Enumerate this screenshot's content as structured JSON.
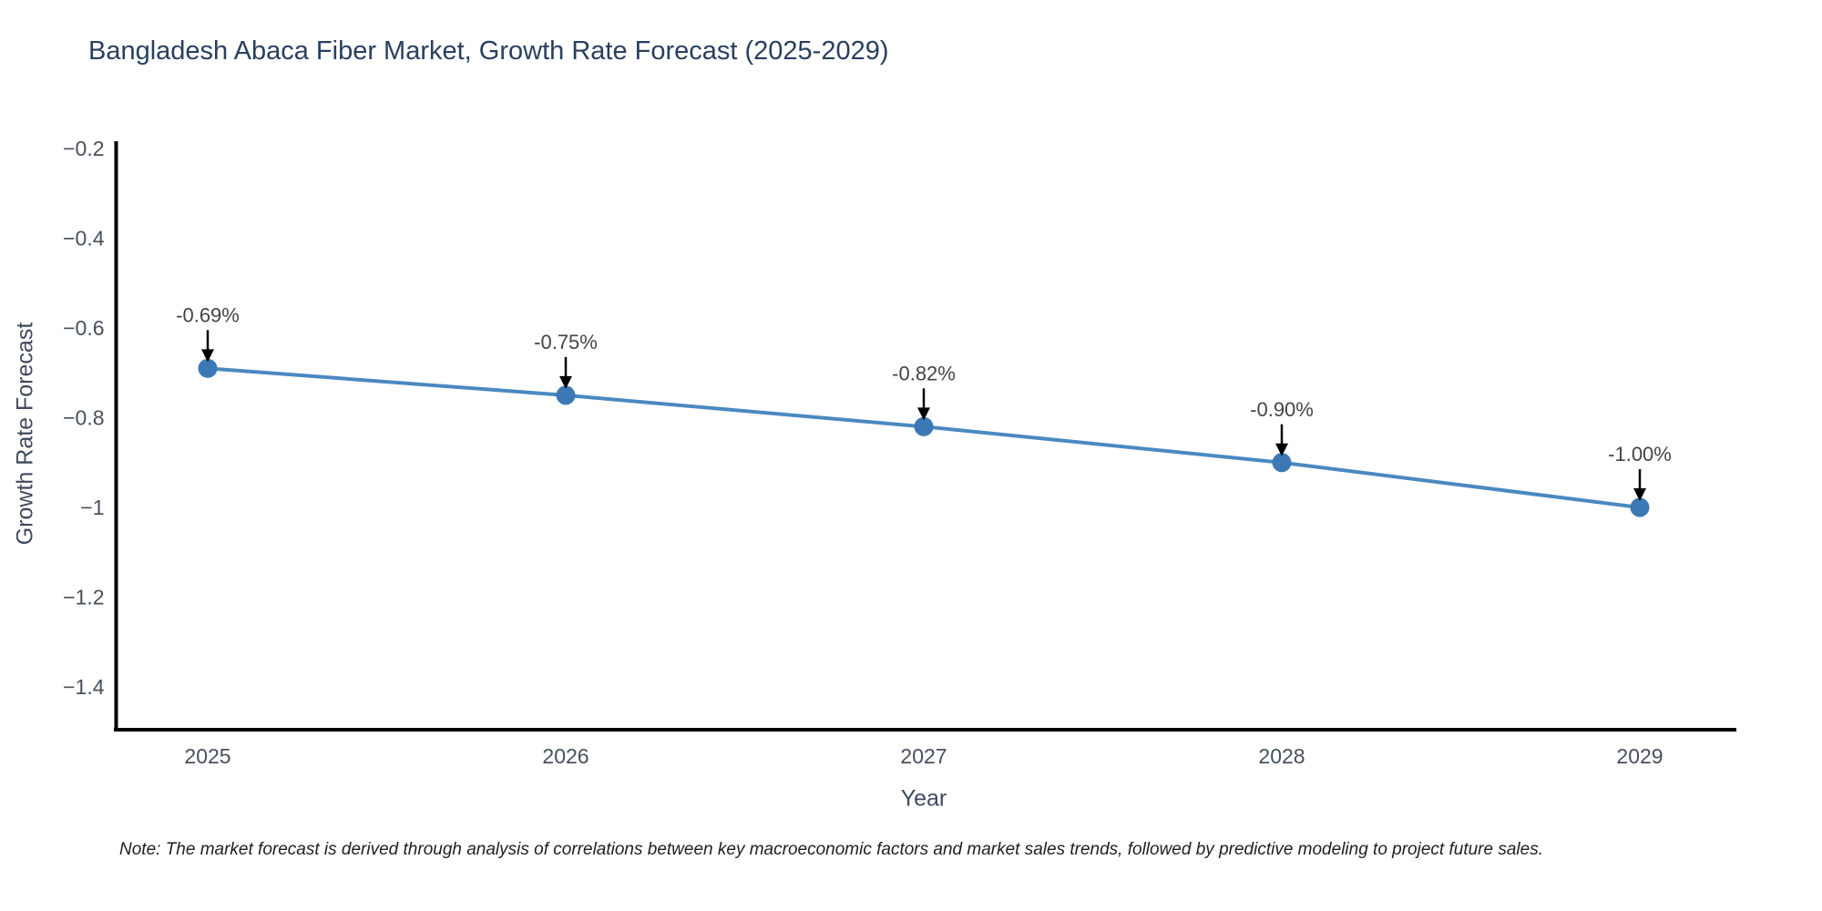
{
  "title": "Bangladesh Abaca Fiber Market, Growth Rate Forecast (2025-2029)",
  "note": "Note: The market forecast is derived through analysis of correlations between key macroeconomic factors and market sales trends, followed by predictive modeling to project future sales.",
  "chart_data": {
    "type": "line",
    "title": "Bangladesh Abaca Fiber Market, Growth Rate Forecast (2025-2029)",
    "xlabel": "Year",
    "ylabel": "Growth Rate Forecast",
    "x": [
      2025,
      2026,
      2027,
      2028,
      2029
    ],
    "values": [
      -0.69,
      -0.75,
      -0.82,
      -0.9,
      -1.0
    ],
    "point_labels": [
      "-0.69%",
      "-0.75%",
      "-0.82%",
      "-0.90%",
      "-1.00%"
    ],
    "xtick_labels": [
      "2025",
      "2026",
      "2027",
      "2028",
      "2029"
    ],
    "yticks": [
      -0.2,
      -0.4,
      -0.6,
      -0.8,
      -1,
      -1.2,
      -1.4
    ],
    "ytick_labels": [
      "−0.2",
      "−0.4",
      "−0.6",
      "−0.8",
      "−1",
      "−1.2",
      "−1.4"
    ],
    "ylim": [
      -1.49,
      -0.18
    ],
    "grid": false,
    "legend": "none",
    "colors": {
      "line": "#4a89c0",
      "marker": "#3c79b4",
      "axis_line": "#000000",
      "title_text": "#2a3f5f",
      "tick_text": "#47505c",
      "annotation_text": "#444444",
      "arrow": "#000000",
      "background": "#ffffff"
    }
  }
}
